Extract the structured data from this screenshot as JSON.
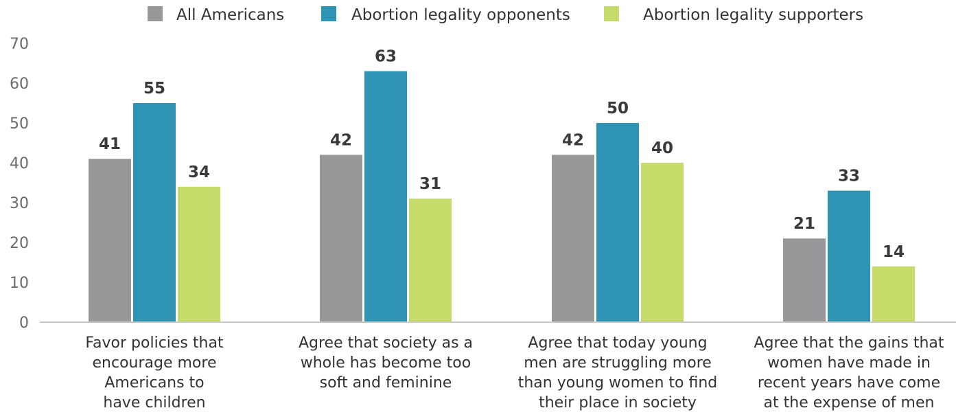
{
  "chart_data": {
    "type": "bar",
    "categories": [
      [
        "Favor policies that",
        "encourage more",
        "Americans to",
        "have children"
      ],
      [
        "Agree that society as a",
        "whole has become too",
        "soft and feminine"
      ],
      [
        "Agree that today young",
        "men are struggling more",
        "than young women to find",
        "their place in society"
      ],
      [
        "Agree that the gains that",
        "women have made in",
        "recent years have come",
        "at the expense of men"
      ]
    ],
    "series": [
      {
        "name": "All Americans",
        "color": "#97989a",
        "values": [
          41,
          42,
          42,
          21
        ]
      },
      {
        "name": "Abortion legality opponents",
        "color": "#2f93b3",
        "values": [
          55,
          63,
          50,
          33
        ]
      },
      {
        "name": "Abortion legality supporters",
        "color": "#c5dc6b",
        "values": [
          34,
          31,
          40,
          14
        ]
      }
    ],
    "ylim": [
      0,
      70
    ],
    "yticks": [
      0,
      10,
      20,
      30,
      40,
      50,
      60,
      70
    ],
    "grid": false,
    "legend_position": "top-center"
  }
}
